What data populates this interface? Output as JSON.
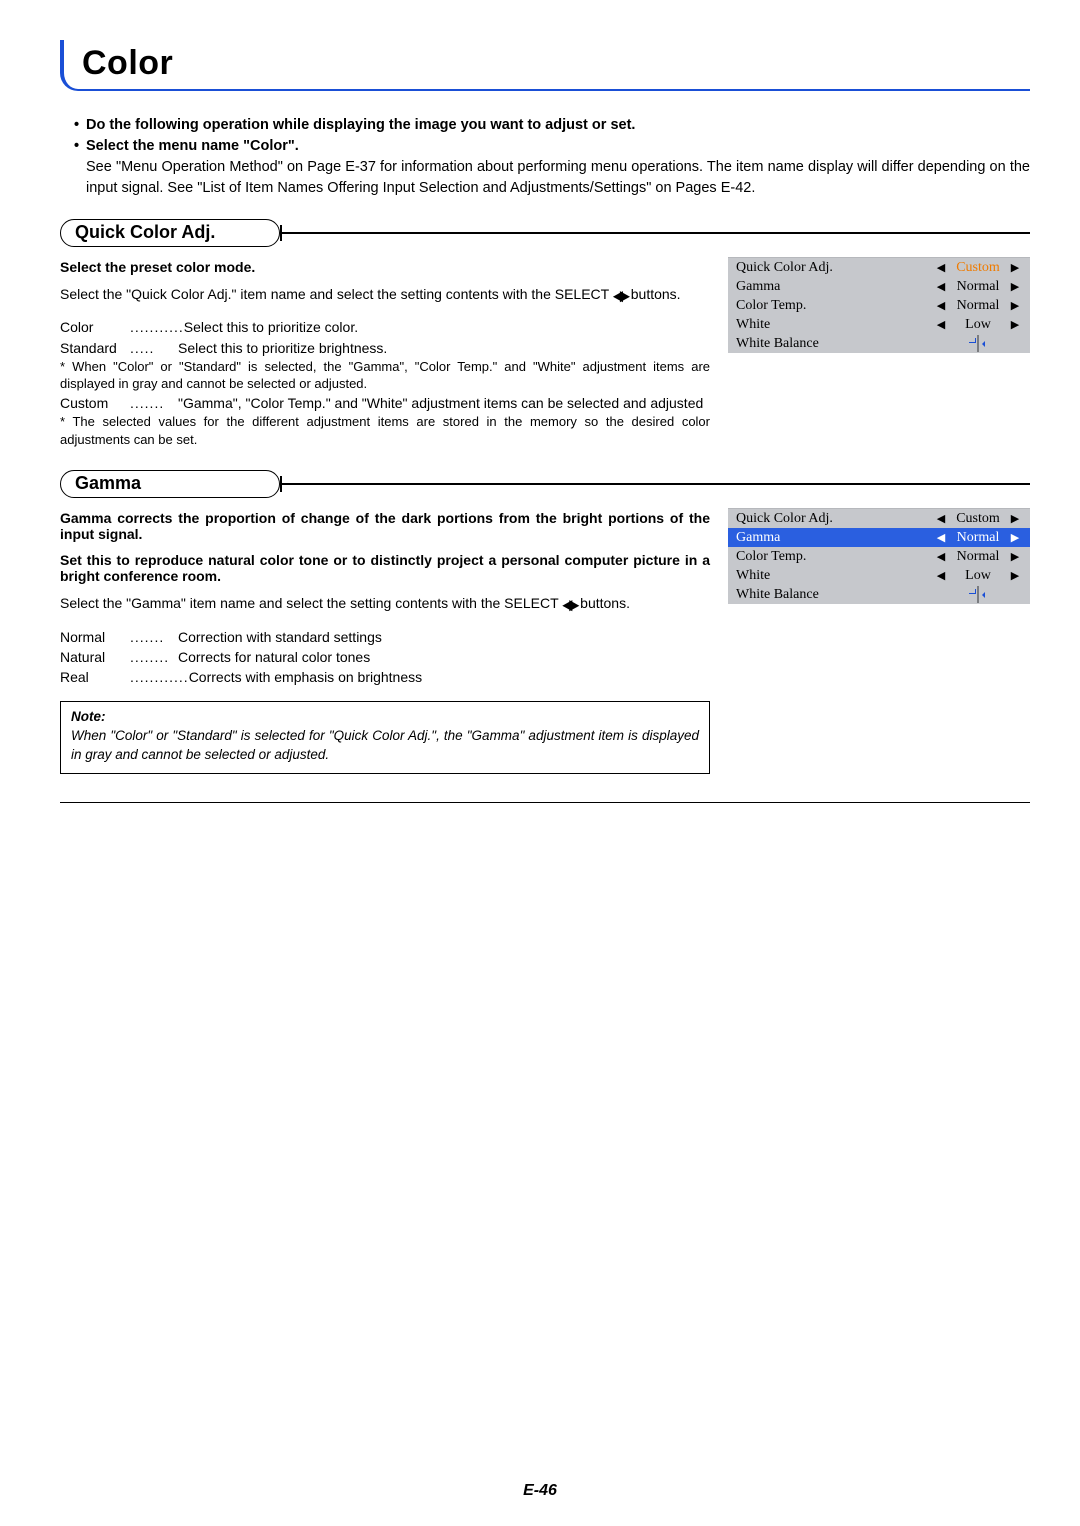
{
  "page": {
    "title": "Color",
    "page_number": "E-46"
  },
  "intro": {
    "line1": "Do the following operation while displaying the image you want to adjust or set.",
    "line2": "Select the menu name \"Color\".",
    "see": "See \"Menu Operation Method\" on Page E-37 for information about performing menu operations. The item name display will differ depending on the input signal. See \"List of Item Names Offering Input Selection and Adjustments/Settings\" on Pages E-42."
  },
  "section1": {
    "heading": "Quick Color Adj.",
    "sub": "Select the preset color mode.",
    "body": "Select the \"Quick Color Adj.\" item name and select the setting contents with the SELECT ",
    "body_tail": " buttons.",
    "defs": {
      "color_k": "Color",
      "color_d": "...........",
      "color_v": "Select this to prioritize color.",
      "standard_k": "Standard",
      "standard_d": ".....",
      "standard_v": "Select this to prioritize brightness.",
      "note1": "* When \"Color\" or \"Standard\" is selected, the \"Gamma\", \"Color Temp.\" and \"White\" adjustment items are displayed in gray and cannot be selected or adjusted.",
      "custom_k": "Custom",
      "custom_d": ".......",
      "custom_v": "\"Gamma\", \"Color Temp.\" and \"White\" adjustment items can be selected and adjusted",
      "note2": "* The selected values for the different adjustment items are stored in the memory so the desired color adjustments can be set."
    },
    "menu": {
      "rows": [
        {
          "label": "Quick Color Adj.",
          "value": "Custom",
          "hl": true,
          "sel": false
        },
        {
          "label": "Gamma",
          "value": "Normal",
          "hl": false,
          "sel": false
        },
        {
          "label": "Color Temp.",
          "value": "Normal",
          "hl": false,
          "sel": false
        },
        {
          "label": "White",
          "value": "Low",
          "hl": false,
          "sel": false
        },
        {
          "label": "White Balance",
          "value": "",
          "hl": false,
          "sel": false,
          "enter": true
        }
      ]
    }
  },
  "section2": {
    "heading": "Gamma",
    "sub1": "Gamma corrects the proportion of change of the dark portions from the bright portions of the input signal.",
    "sub2": "Set this to reproduce natural color tone or to distinctly project a personal computer picture in a bright conference room.",
    "body": "Select the \"Gamma\" item name and select the setting contents with the SELECT ",
    "body_tail": " buttons.",
    "defs": {
      "normal_k": "Normal",
      "normal_d": ".......",
      "normal_v": "Correction with standard settings",
      "natural_k": "Natural",
      "natural_d": "........",
      "natural_v": "Corrects for natural color tones",
      "real_k": "Real",
      "real_d": "............",
      "real_v": "Corrects with emphasis on brightness"
    },
    "note_head": "Note:",
    "note_body": "When \"Color\" or \"Standard\" is selected for \"Quick Color Adj.\", the \"Gamma\" adjustment item is displayed in gray and cannot be selected or adjusted.",
    "menu": {
      "rows": [
        {
          "label": "Quick Color Adj.",
          "value": "Custom",
          "hl": false,
          "sel": false
        },
        {
          "label": "Gamma",
          "value": "Normal",
          "hl": false,
          "sel": true
        },
        {
          "label": "Color Temp.",
          "value": "Normal",
          "hl": false,
          "sel": false
        },
        {
          "label": "White",
          "value": "Low",
          "hl": false,
          "sel": false
        },
        {
          "label": "White Balance",
          "value": "",
          "hl": false,
          "sel": false,
          "enter": true
        }
      ]
    }
  },
  "colors": {
    "selected_bg": "#2a5fe0",
    "highlight_text": "#ef7b00",
    "menu_bg": "#c6c8cc"
  }
}
